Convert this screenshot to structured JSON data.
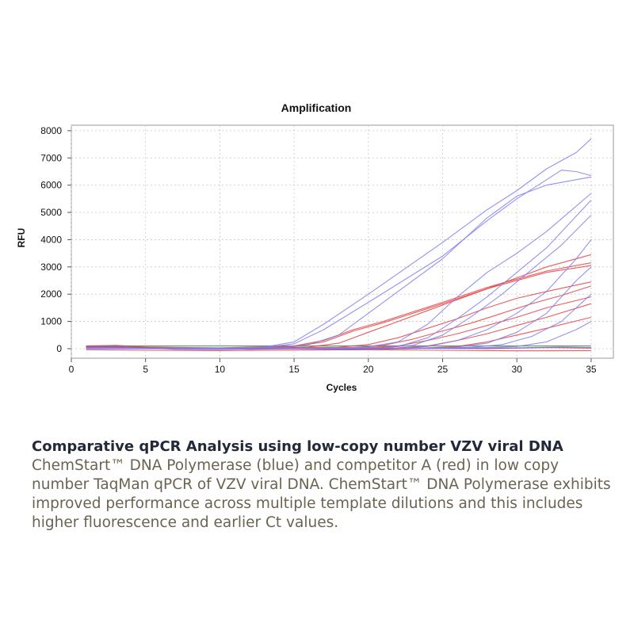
{
  "chart_data": {
    "type": "line",
    "title": "Amplification",
    "xlabel": "Cycles",
    "ylabel": "RFU",
    "xlim": [
      0,
      36.5
    ],
    "ylim": [
      -350,
      8200
    ],
    "xticks": [
      0,
      5,
      10,
      15,
      20,
      25,
      30,
      35
    ],
    "yticks": [
      0,
      1000,
      2000,
      3000,
      4000,
      5000,
      6000,
      7000,
      8000
    ],
    "grid": true,
    "threshold": 100,
    "colors": {
      "blue": "#8080f0",
      "red": "#e84040",
      "threshold": "#6a9a6a"
    },
    "series": [
      {
        "group": "blue",
        "color": "#8080f0",
        "points": [
          [
            1,
            40
          ],
          [
            5,
            20
          ],
          [
            10,
            10
          ],
          [
            13,
            60
          ],
          [
            15,
            250
          ],
          [
            17,
            900
          ],
          [
            20,
            2000
          ],
          [
            25,
            3900
          ],
          [
            28,
            5100
          ],
          [
            30,
            5800
          ],
          [
            32,
            6600
          ],
          [
            34,
            7200
          ],
          [
            35,
            7700
          ]
        ]
      },
      {
        "group": "blue",
        "color": "#8080f0",
        "points": [
          [
            1,
            30
          ],
          [
            5,
            15
          ],
          [
            10,
            20
          ],
          [
            13,
            40
          ],
          [
            15,
            180
          ],
          [
            17,
            700
          ],
          [
            20,
            1700
          ],
          [
            25,
            3400
          ],
          [
            28,
            4700
          ],
          [
            30,
            5500
          ],
          [
            32,
            6200
          ],
          [
            33,
            6550
          ],
          [
            34,
            6500
          ],
          [
            35,
            6350
          ]
        ]
      },
      {
        "group": "blue",
        "color": "#8080f0",
        "points": [
          [
            1,
            20
          ],
          [
            10,
            10
          ],
          [
            14,
            40
          ],
          [
            16,
            150
          ],
          [
            18,
            500
          ],
          [
            20,
            1300
          ],
          [
            25,
            3300
          ],
          [
            28,
            4800
          ],
          [
            30,
            5600
          ],
          [
            32,
            6000
          ],
          [
            35,
            6300
          ]
        ]
      },
      {
        "group": "blue",
        "color": "#8080f0",
        "points": [
          [
            1,
            10
          ],
          [
            10,
            0
          ],
          [
            18,
            20
          ],
          [
            20,
            70
          ],
          [
            22,
            250
          ],
          [
            24,
            900
          ],
          [
            26,
            1900
          ],
          [
            28,
            2800
          ],
          [
            30,
            3500
          ],
          [
            32,
            4300
          ],
          [
            35,
            5700
          ]
        ]
      },
      {
        "group": "blue",
        "color": "#8080f0",
        "points": [
          [
            1,
            10
          ],
          [
            10,
            0
          ],
          [
            20,
            20
          ],
          [
            22,
            80
          ],
          [
            24,
            400
          ],
          [
            26,
            1100
          ],
          [
            28,
            1900
          ],
          [
            30,
            2800
          ],
          [
            32,
            3700
          ],
          [
            35,
            5450
          ]
        ]
      },
      {
        "group": "blue",
        "color": "#8080f0",
        "points": [
          [
            1,
            20
          ],
          [
            10,
            10
          ],
          [
            21,
            40
          ],
          [
            23,
            120
          ],
          [
            25,
            500
          ],
          [
            27,
            1200
          ],
          [
            29,
            2000
          ],
          [
            31,
            2900
          ],
          [
            33,
            3800
          ],
          [
            35,
            4900
          ]
        ]
      },
      {
        "group": "blue",
        "color": "#8080f0",
        "points": [
          [
            1,
            0
          ],
          [
            10,
            10
          ],
          [
            22,
            20
          ],
          [
            24,
            80
          ],
          [
            26,
            300
          ],
          [
            28,
            700
          ],
          [
            30,
            1300
          ],
          [
            32,
            2100
          ],
          [
            34,
            3300
          ],
          [
            35,
            4000
          ]
        ]
      },
      {
        "group": "blue",
        "color": "#8080f0",
        "points": [
          [
            1,
            30
          ],
          [
            10,
            20
          ],
          [
            24,
            20
          ],
          [
            26,
            60
          ],
          [
            28,
            200
          ],
          [
            30,
            600
          ],
          [
            32,
            1300
          ],
          [
            34,
            2500
          ],
          [
            35,
            3000
          ]
        ]
      },
      {
        "group": "blue",
        "color": "#8080f0",
        "points": [
          [
            1,
            20
          ],
          [
            10,
            10
          ],
          [
            25,
            20
          ],
          [
            27,
            50
          ],
          [
            29,
            150
          ],
          [
            31,
            450
          ],
          [
            33,
            1000
          ],
          [
            35,
            2000
          ]
        ]
      },
      {
        "group": "blue",
        "color": "#8080f0",
        "points": [
          [
            1,
            10
          ],
          [
            10,
            20
          ],
          [
            26,
            30
          ],
          [
            28,
            40
          ],
          [
            30,
            80
          ],
          [
            32,
            250
          ],
          [
            34,
            700
          ],
          [
            35,
            1000
          ]
        ]
      },
      {
        "group": "blue",
        "color": "#6a6ae0",
        "points": [
          [
            1,
            60
          ],
          [
            3,
            80
          ],
          [
            5,
            30
          ],
          [
            7,
            -20
          ],
          [
            10,
            -30
          ],
          [
            14,
            10
          ],
          [
            18,
            -20
          ],
          [
            22,
            20
          ],
          [
            26,
            10
          ],
          [
            30,
            30
          ],
          [
            33,
            60
          ],
          [
            35,
            40
          ]
        ]
      },
      {
        "group": "red",
        "color": "#e84040",
        "points": [
          [
            1,
            80
          ],
          [
            10,
            30
          ],
          [
            15,
            100
          ],
          [
            17,
            300
          ],
          [
            19,
            700
          ],
          [
            21,
            1000
          ],
          [
            23,
            1350
          ],
          [
            25,
            1700
          ],
          [
            28,
            2250
          ],
          [
            30,
            2550
          ],
          [
            32,
            2850
          ],
          [
            35,
            3150
          ]
        ]
      },
      {
        "group": "red",
        "color": "#e84040",
        "points": [
          [
            1,
            60
          ],
          [
            10,
            20
          ],
          [
            15,
            80
          ],
          [
            17,
            250
          ],
          [
            19,
            650
          ],
          [
            21,
            950
          ],
          [
            23,
            1300
          ],
          [
            25,
            1650
          ],
          [
            28,
            2200
          ],
          [
            30,
            2500
          ],
          [
            32,
            2800
          ],
          [
            35,
            3050
          ]
        ]
      },
      {
        "group": "red",
        "color": "#e84040",
        "points": [
          [
            1,
            40
          ],
          [
            10,
            10
          ],
          [
            16,
            60
          ],
          [
            18,
            200
          ],
          [
            20,
            600
          ],
          [
            22,
            1000
          ],
          [
            24,
            1400
          ],
          [
            26,
            1800
          ],
          [
            28,
            2200
          ],
          [
            30,
            2600
          ],
          [
            32,
            3000
          ],
          [
            35,
            3450
          ]
        ]
      },
      {
        "group": "red",
        "color": "#e84040",
        "points": [
          [
            1,
            50
          ],
          [
            10,
            20
          ],
          [
            18,
            50
          ],
          [
            20,
            150
          ],
          [
            22,
            400
          ],
          [
            24,
            750
          ],
          [
            26,
            1100
          ],
          [
            28,
            1500
          ],
          [
            30,
            1850
          ],
          [
            32,
            2100
          ],
          [
            35,
            2450
          ]
        ]
      },
      {
        "group": "red",
        "color": "#e84040",
        "points": [
          [
            1,
            30
          ],
          [
            10,
            10
          ],
          [
            19,
            40
          ],
          [
            21,
            120
          ],
          [
            23,
            350
          ],
          [
            25,
            650
          ],
          [
            27,
            950
          ],
          [
            29,
            1300
          ],
          [
            31,
            1650
          ],
          [
            33,
            1950
          ],
          [
            35,
            2300
          ]
        ]
      },
      {
        "group": "red",
        "color": "#e84040",
        "points": [
          [
            1,
            20
          ],
          [
            10,
            0
          ],
          [
            20,
            40
          ],
          [
            22,
            100
          ],
          [
            24,
            300
          ],
          [
            26,
            550
          ],
          [
            28,
            850
          ],
          [
            30,
            1150
          ],
          [
            32,
            1500
          ],
          [
            35,
            1900
          ]
        ]
      },
      {
        "group": "red",
        "color": "#e84040",
        "points": [
          [
            1,
            20
          ],
          [
            10,
            10
          ],
          [
            22,
            30
          ],
          [
            24,
            100
          ],
          [
            26,
            300
          ],
          [
            28,
            550
          ],
          [
            30,
            850
          ],
          [
            32,
            1150
          ],
          [
            35,
            1650
          ]
        ]
      },
      {
        "group": "red",
        "color": "#e84040",
        "points": [
          [
            1,
            10
          ],
          [
            10,
            0
          ],
          [
            24,
            30
          ],
          [
            26,
            80
          ],
          [
            28,
            250
          ],
          [
            30,
            500
          ],
          [
            32,
            750
          ],
          [
            35,
            1150
          ]
        ]
      },
      {
        "group": "red",
        "color": "#e84040",
        "points": [
          [
            1,
            -40
          ],
          [
            5,
            -60
          ],
          [
            10,
            -70
          ],
          [
            15,
            -50
          ],
          [
            20,
            -40
          ],
          [
            25,
            -60
          ],
          [
            30,
            -80
          ],
          [
            35,
            -70
          ]
        ]
      },
      {
        "group": "red",
        "color": "#e84040",
        "points": [
          [
            1,
            100
          ],
          [
            3,
            120
          ],
          [
            5,
            60
          ],
          [
            8,
            30
          ],
          [
            12,
            -20
          ],
          [
            16,
            10
          ],
          [
            20,
            -30
          ],
          [
            24,
            20
          ],
          [
            28,
            0
          ],
          [
            32,
            40
          ],
          [
            35,
            20
          ]
        ]
      }
    ]
  },
  "caption": {
    "title": "Comparative qPCR Analysis using low-copy number VZV viral DNA",
    "body": "ChemStart™ DNA Polymerase (blue) and competitor A (red) in low copy number TaqMan qPCR of VZV viral DNA. ChemStart™ DNA Polymerase exhibits improved performance across multiple template dilutions and this includes higher fluorescence and earlier Ct values."
  }
}
